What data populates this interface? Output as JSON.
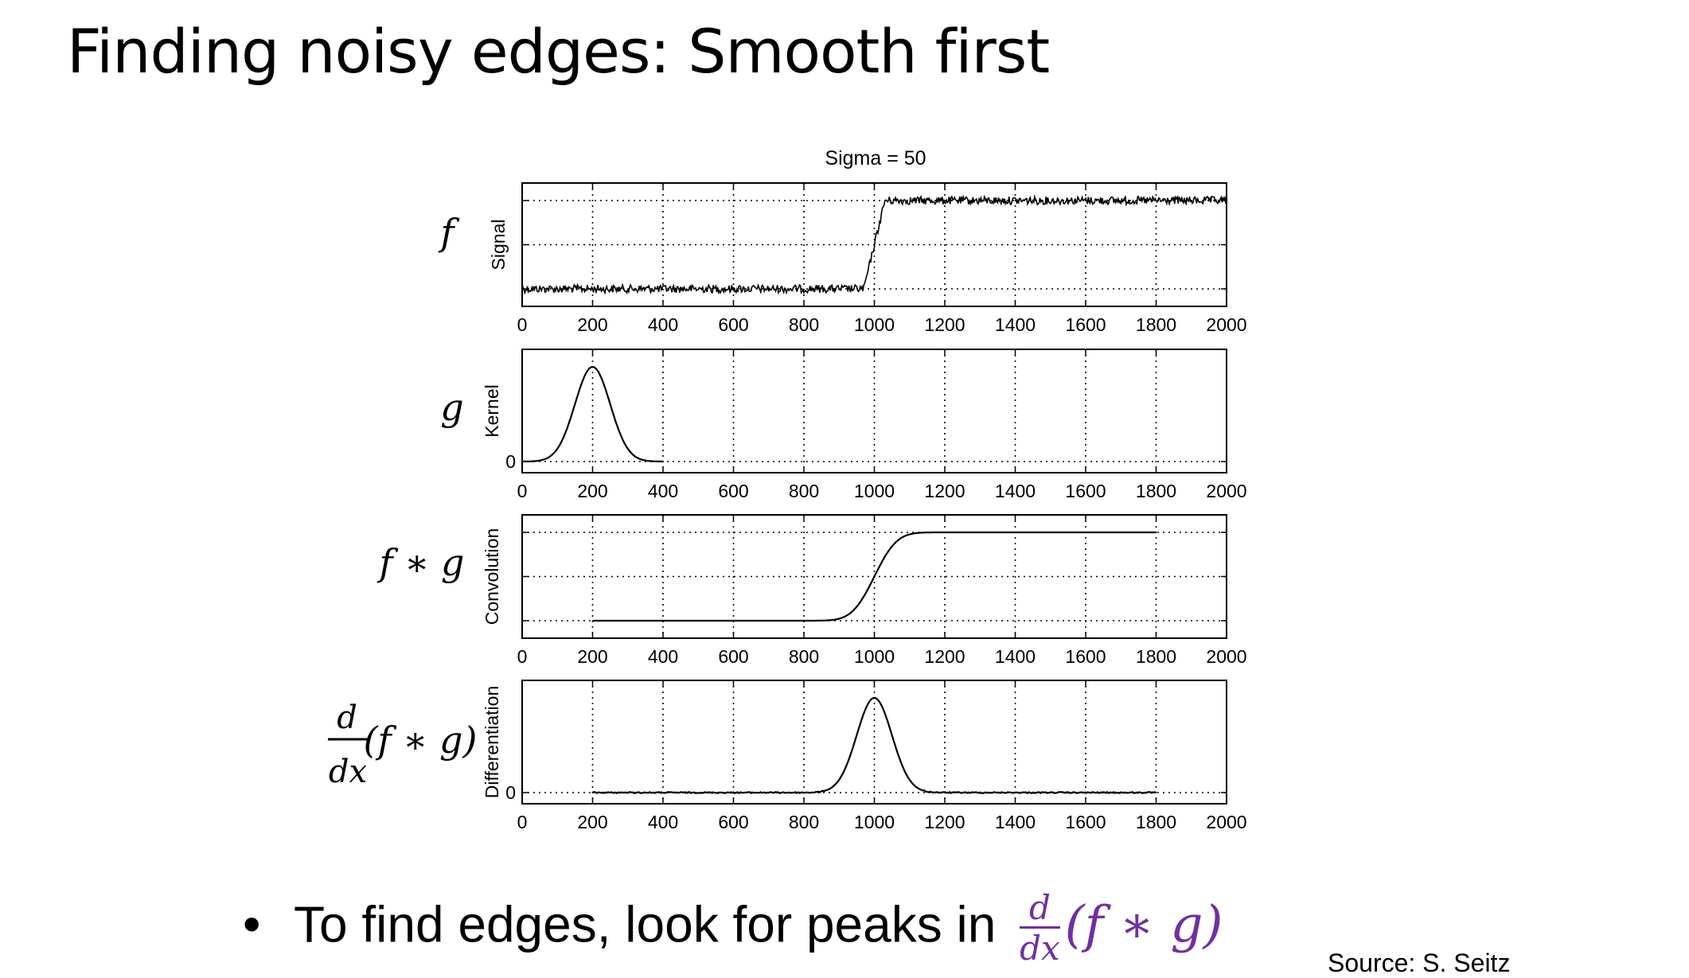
{
  "slide": {
    "title": "Finding noisy edges: Smooth first",
    "bullet_prefix": "To find edges, look for peaks in",
    "bullet_expr": {
      "numerator": "d",
      "denominator": "dx",
      "expr": "(f ∗ g)"
    },
    "source": "Source: S. Seitz"
  },
  "figure": {
    "title": "Sigma = 50",
    "row_labels": [
      "f",
      "g",
      "f ∗ g",
      "(f ∗ g)"
    ],
    "deriv_label": {
      "numerator": "d",
      "denominator": "dx"
    },
    "tick_labels": [
      "0",
      "200",
      "400",
      "600",
      "800",
      "1000",
      "1200",
      "1400",
      "1600",
      "1800",
      "2000"
    ],
    "zero_label": "0"
  },
  "chart_data": [
    {
      "type": "line",
      "ylabel": "Signal",
      "xlim": [
        0,
        2000
      ],
      "grid": true,
      "series": [
        {
          "x": [
            0,
            970,
            1000,
            1030,
            2000
          ],
          "y": [
            0,
            0,
            0.5,
            1,
            1
          ],
          "noise": "high"
        }
      ]
    },
    {
      "type": "line",
      "ylabel": "Kernel",
      "xlim": [
        0,
        2000
      ],
      "grid": true,
      "yticks": [
        "0"
      ],
      "series": [
        {
          "shape": "gaussian",
          "center": 200,
          "sigma": 50,
          "x_range": [
            0,
            400
          ]
        }
      ]
    },
    {
      "type": "line",
      "ylabel": "Convolution",
      "xlim": [
        0,
        2000
      ],
      "grid": true,
      "series": [
        {
          "shape": "smoothed-step",
          "edge": 1000,
          "sigma": 50,
          "x_range": [
            200,
            1800
          ]
        }
      ]
    },
    {
      "type": "line",
      "ylabel": "Differentiation",
      "xlim": [
        0,
        2000
      ],
      "grid": true,
      "yticks": [
        "0"
      ],
      "series": [
        {
          "shape": "gaussian",
          "center": 1000,
          "sigma": 50,
          "x_range": [
            200,
            1800
          ]
        }
      ]
    }
  ]
}
